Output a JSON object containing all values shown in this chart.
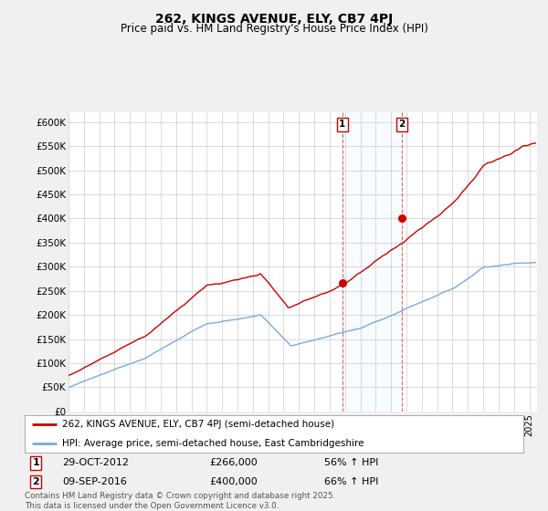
{
  "title1": "262, KINGS AVENUE, ELY, CB7 4PJ",
  "title2": "Price paid vs. HM Land Registry's House Price Index (HPI)",
  "ylabel_ticks": [
    "£0",
    "£50K",
    "£100K",
    "£150K",
    "£200K",
    "£250K",
    "£300K",
    "£350K",
    "£400K",
    "£450K",
    "£500K",
    "£550K",
    "£600K"
  ],
  "ytick_values": [
    0,
    50000,
    100000,
    150000,
    200000,
    250000,
    300000,
    350000,
    400000,
    450000,
    500000,
    550000,
    600000
  ],
  "ylim": [
    0,
    620000
  ],
  "xlim_start": 1995.0,
  "xlim_end": 2025.5,
  "marker1_x": 2012.83,
  "marker1_y": 266000,
  "marker2_x": 2016.69,
  "marker2_y": 400000,
  "sale_color": "#cc0000",
  "hpi_color": "#7aaadd",
  "hpi_fill_color": "#ddeeff",
  "legend_sale": "262, KINGS AVENUE, ELY, CB7 4PJ (semi-detached house)",
  "legend_hpi": "HPI: Average price, semi-detached house, East Cambridgeshire",
  "note1_date": "29-OCT-2012",
  "note1_price": "£266,000",
  "note1_change": "56% ↑ HPI",
  "note2_date": "09-SEP-2016",
  "note2_price": "£400,000",
  "note2_change": "66% ↑ HPI",
  "footer": "Contains HM Land Registry data © Crown copyright and database right 2025.\nThis data is licensed under the Open Government Licence v3.0.",
  "bg_color": "#f0f0f0",
  "plot_bg": "#ffffff"
}
